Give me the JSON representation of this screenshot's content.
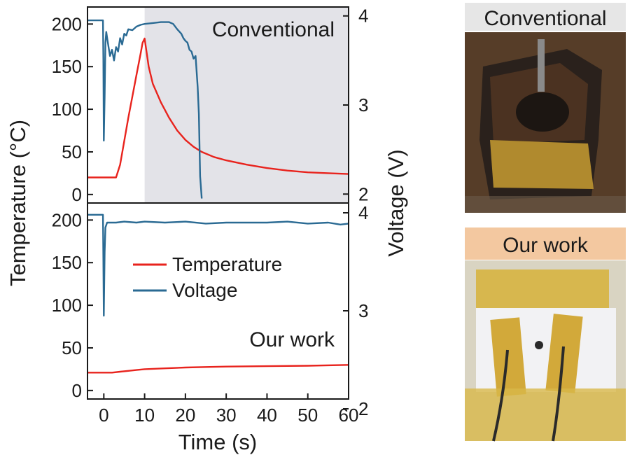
{
  "chart_data": [
    {
      "type": "line",
      "panel": "top",
      "label": "Conventional",
      "xlim": [
        -4,
        60
      ],
      "ylim_left": [
        -10,
        220
      ],
      "ylim_right": [
        1.9,
        4.1
      ],
      "shaded_region": {
        "x_from": 10,
        "x_to": 60,
        "color": "#e3e3e8"
      },
      "series": [
        {
          "name": "Temperature",
          "axis": "left",
          "color": "#e8231d",
          "x": [
            -4,
            3,
            4,
            6,
            8,
            9,
            9.5,
            10,
            11,
            12,
            14,
            16,
            18,
            20,
            22,
            24,
            27,
            30,
            35,
            40,
            45,
            50,
            55,
            60
          ],
          "y": [
            20,
            20,
            35,
            90,
            140,
            165,
            178,
            183,
            150,
            130,
            108,
            90,
            75,
            64,
            56,
            50,
            44,
            40,
            35,
            31,
            28,
            26,
            25,
            24
          ]
        },
        {
          "name": "Voltage",
          "axis": "right",
          "color": "#2a6a93",
          "x": [
            -4,
            -0.2,
            -0.1,
            0,
            0.2,
            0.4,
            0.6,
            1,
            1.5,
            2,
            2.5,
            3,
            3.5,
            4,
            4.5,
            5,
            5.5,
            6,
            7,
            8,
            9,
            10,
            12,
            14,
            16,
            17,
            18,
            19,
            19.5,
            20,
            20.5,
            21,
            21.5,
            22,
            22.5,
            23,
            23.3,
            23.6,
            24
          ],
          "y": [
            3.95,
            3.95,
            3.5,
            2.6,
            3.1,
            3.7,
            3.82,
            3.7,
            3.55,
            3.62,
            3.5,
            3.65,
            3.6,
            3.75,
            3.68,
            3.8,
            3.78,
            3.85,
            3.84,
            3.88,
            3.9,
            3.91,
            3.92,
            3.93,
            3.93,
            3.91,
            3.85,
            3.8,
            3.75,
            3.72,
            3.7,
            3.62,
            3.6,
            3.52,
            3.55,
            3.2,
            2.9,
            2.2,
            1.95
          ]
        }
      ]
    },
    {
      "type": "line",
      "panel": "bottom",
      "label": "Our work",
      "xlim": [
        -4,
        60
      ],
      "ylim_left": [
        -10,
        220
      ],
      "ylim_right": [
        2.1,
        4.1
      ],
      "series": [
        {
          "name": "Temperature",
          "axis": "left",
          "color": "#e8231d",
          "x": [
            -4,
            2,
            4,
            6,
            8,
            10,
            15,
            20,
            25,
            30,
            40,
            50,
            60
          ],
          "y": [
            21,
            21,
            22,
            23,
            24,
            25,
            26,
            27,
            27.5,
            28,
            28.5,
            29,
            30
          ]
        },
        {
          "name": "Voltage",
          "axis": "right",
          "color": "#2a6a93",
          "x": [
            -4,
            -0.2,
            -0.1,
            0,
            0.2,
            0.4,
            0.8,
            1.5,
            3,
            5,
            8,
            10,
            15,
            20,
            25,
            30,
            35,
            40,
            45,
            50,
            55,
            58,
            60
          ],
          "y": [
            3.98,
            3.98,
            3.5,
            2.95,
            3.6,
            3.85,
            3.9,
            3.9,
            3.9,
            3.91,
            3.9,
            3.91,
            3.9,
            3.91,
            3.89,
            3.9,
            3.9,
            3.9,
            3.91,
            3.89,
            3.9,
            3.88,
            3.89
          ]
        }
      ]
    }
  ],
  "axes": {
    "x_title": "Time (s)",
    "y_left_title": "Temperature (°C)",
    "y_right_title": "Voltage (V)",
    "x_ticks": [
      "0",
      "10",
      "20",
      "30",
      "40",
      "50",
      "60"
    ],
    "y_left_ticks": [
      "0",
      "50",
      "100",
      "150",
      "200"
    ],
    "y_right_ticks_top": [
      "2",
      "3",
      "4"
    ],
    "y_right_ticks_bottom": [
      "2",
      "3",
      "4"
    ]
  },
  "legend": {
    "placement": "bottom-panel upper-middle",
    "entries": [
      {
        "name": "Temperature",
        "color": "#e8231d"
      },
      {
        "name": "Voltage",
        "color": "#2a6a93"
      }
    ]
  },
  "photos": [
    {
      "label": "Conventional",
      "label_bg": "#e6e6e6"
    },
    {
      "label": "Our work",
      "label_bg": "#f3c8a0"
    }
  ]
}
